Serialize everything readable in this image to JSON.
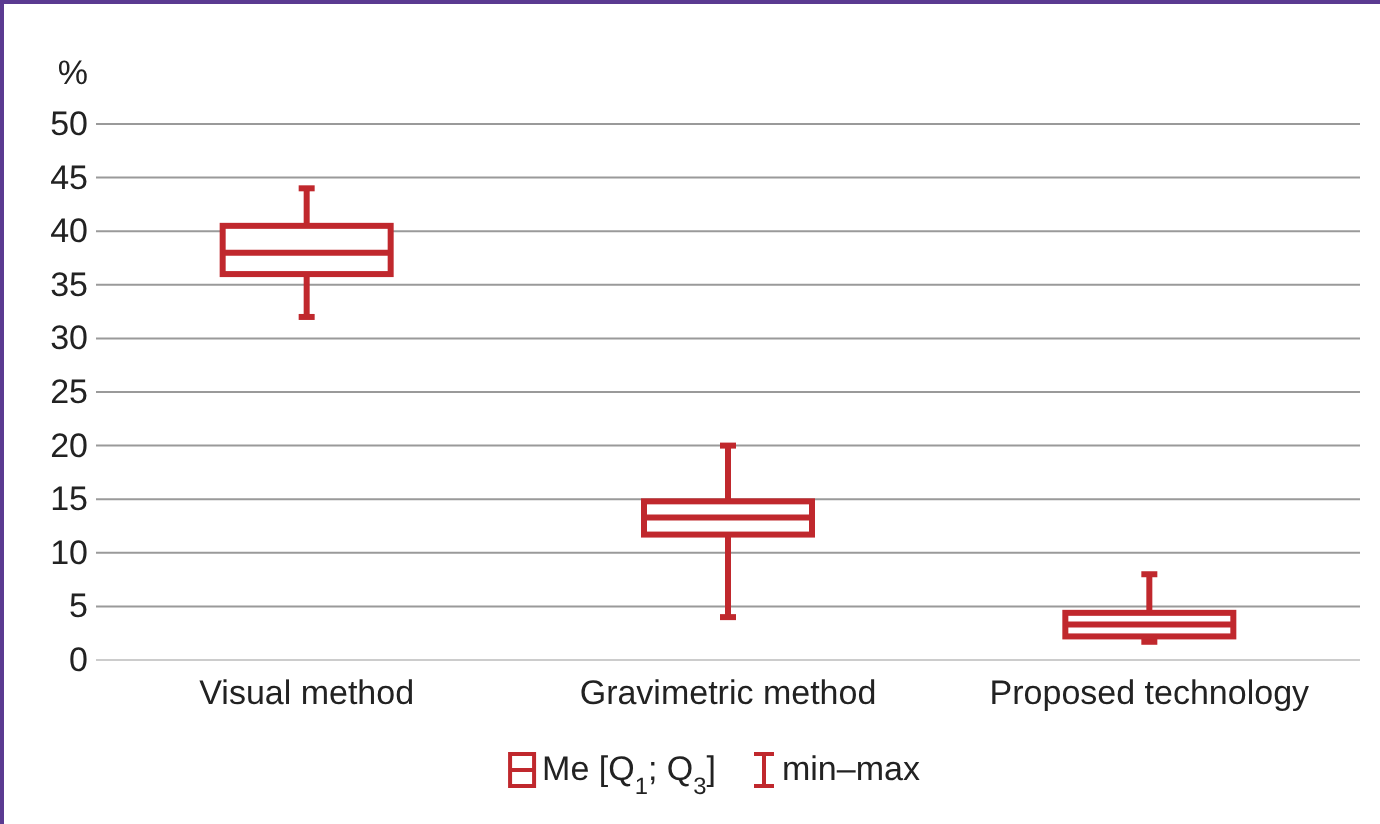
{
  "chart_data": {
    "type": "box",
    "ylabel": "%",
    "categories": [
      "Visual method",
      "Gravimetric method",
      "Proposed technology"
    ],
    "series": [
      {
        "name": "Me [Q$_{1}$; Q$_{3}$]",
        "color": "#c0282d",
        "boxes": [
          {
            "low": 32,
            "q1": 36,
            "median": 38,
            "q3": 40.5,
            "high": 44
          },
          {
            "low": 4,
            "q1": 11.7,
            "median": 13.3,
            "q3": 14.8,
            "high": 20
          },
          {
            "low": 1.7,
            "q1": 2.2,
            "median": 3.3,
            "q3": 4.4,
            "high": 8
          }
        ]
      }
    ],
    "annotations": [
      "min–max"
    ],
    "ylim": [
      0,
      50
    ],
    "yticks": [
      0,
      5,
      10,
      15,
      20,
      25,
      30,
      35,
      40,
      45,
      50
    ],
    "grid": "y",
    "legend": "bottom"
  }
}
